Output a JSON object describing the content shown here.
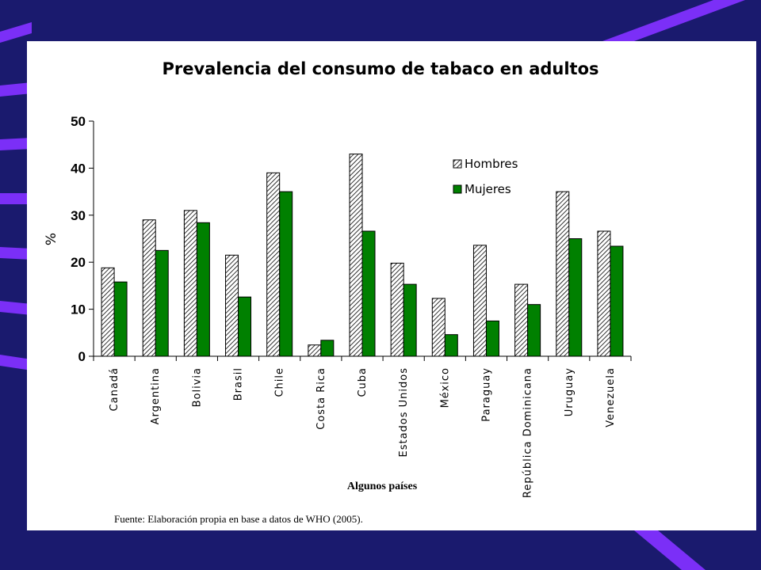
{
  "chart_data": {
    "type": "bar",
    "title": "Prevalencia del consumo de tabaco en adultos",
    "ylabel": "%",
    "xlabel": "Algunos países",
    "ylim": [
      0,
      50
    ],
    "yticks": [
      0,
      10,
      20,
      30,
      40,
      50
    ],
    "categories": [
      "Canadá",
      "Argentina",
      "Bolivia",
      "Brasil",
      "Chile",
      "Costa Rica",
      "Cuba",
      "Estados Unidos",
      "México",
      "Paraguay",
      "República Dominicana",
      "Uruguay",
      "Venezuela"
    ],
    "series": [
      {
        "name": "Hombres",
        "values": [
          18.8,
          29,
          31,
          21.5,
          39,
          2.4,
          43,
          19.8,
          12.3,
          23.6,
          15.3,
          35,
          26.6
        ],
        "color": "#d9d9d9",
        "pattern": "diagonal-hatch"
      },
      {
        "name": "Mujeres",
        "values": [
          15.8,
          22.5,
          28.4,
          12.6,
          35,
          3.4,
          26.6,
          15.3,
          4.6,
          7.5,
          11,
          25,
          23.4
        ],
        "color": "#008000"
      }
    ],
    "legend_position": "top-right",
    "grid": false
  },
  "source": "Fuente: Elaboración propia en base a datos de WHO (2005).",
  "colors": {
    "background": "#1a1a6e",
    "stripe": "#7b2ff7",
    "panel": "#ffffff"
  }
}
